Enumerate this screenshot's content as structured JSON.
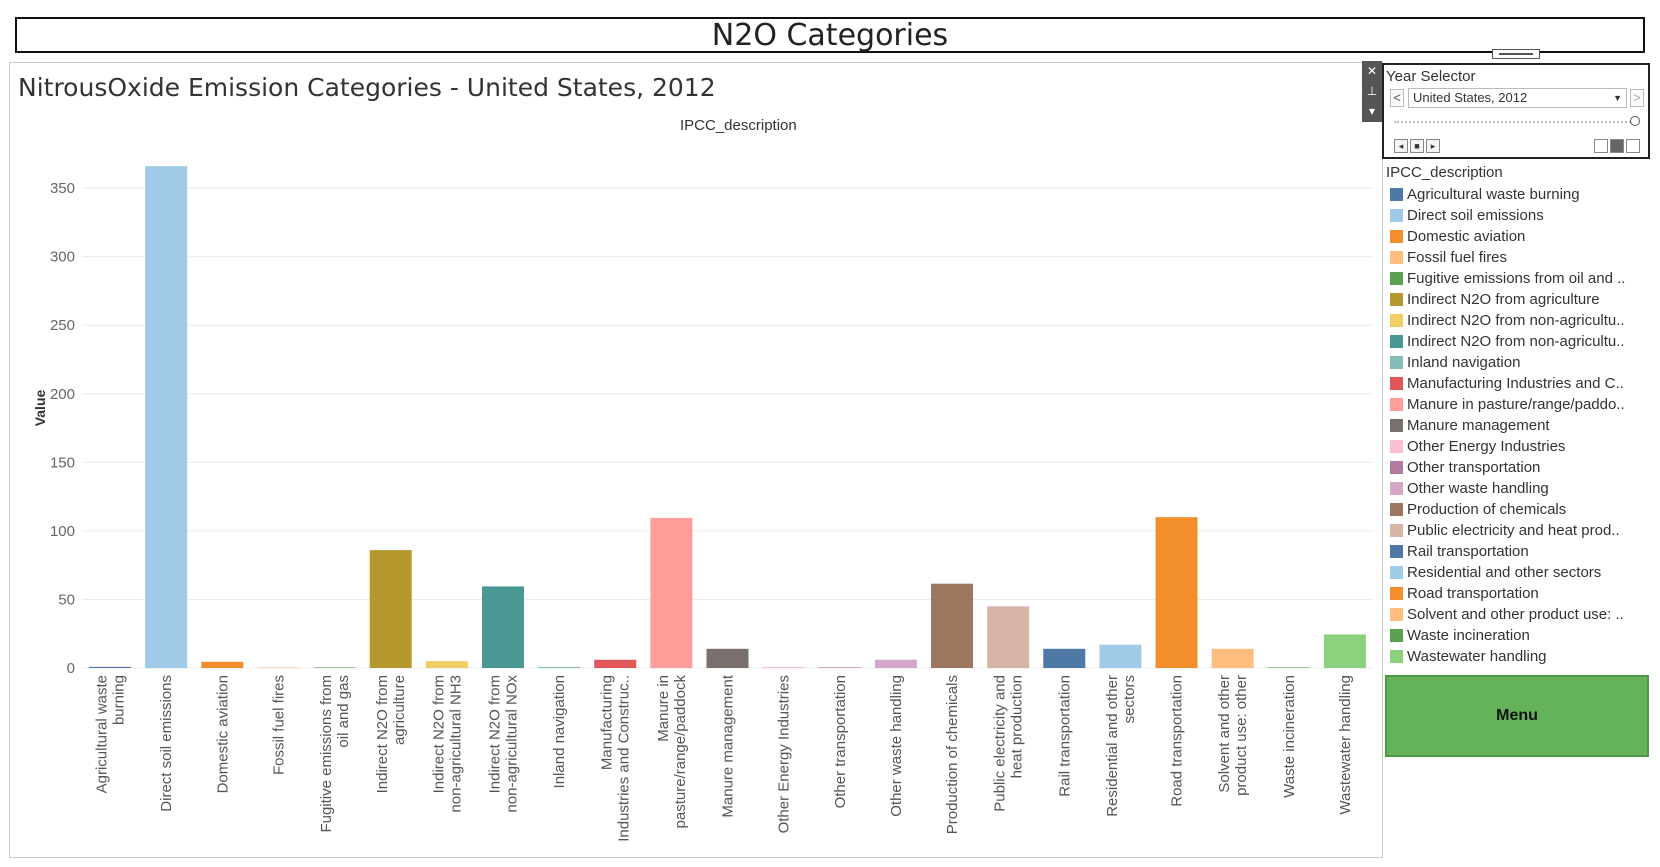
{
  "dashboard": {
    "title": "N2O Categories"
  },
  "sheet": {
    "title": "NitrousOxide Emission Categories - United States, 2012"
  },
  "year_selector": {
    "title": "Year Selector",
    "selected": "United States, 2012",
    "prev": "<",
    "next": ">",
    "dropdown_icon": "▼",
    "slider_position": 1.0
  },
  "float_tools": {
    "close": "✕",
    "pin": "⊥",
    "more": "▾"
  },
  "legend": {
    "title": "IPCC_description",
    "items": [
      {
        "label": "Agricultural waste burning",
        "color": "#4e79a7"
      },
      {
        "label": "Direct soil emissions",
        "color": "#a0cbe8"
      },
      {
        "label": "Domestic aviation",
        "color": "#f28e2b"
      },
      {
        "label": "Fossil fuel fires",
        "color": "#ffbe7d"
      },
      {
        "label": "Fugitive emissions from oil and ..",
        "color": "#59a14f"
      },
      {
        "label": "Indirect N2O from agriculture",
        "color": "#b6992d"
      },
      {
        "label": "Indirect N2O from non-agricultu..",
        "color": "#f1ce63"
      },
      {
        "label": "Indirect N2O from non-agricultu..",
        "color": "#499894"
      },
      {
        "label": "Inland navigation",
        "color": "#86bcb6"
      },
      {
        "label": "Manufacturing Industries and C..",
        "color": "#e15759"
      },
      {
        "label": "Manure in pasture/range/paddo..",
        "color": "#ff9d9a"
      },
      {
        "label": "Manure management",
        "color": "#79706e"
      },
      {
        "label": "Other Energy Industries",
        "color": "#fabfd2"
      },
      {
        "label": "Other transportation",
        "color": "#b07aa1"
      },
      {
        "label": "Other waste handling",
        "color": "#d4a6c8"
      },
      {
        "label": "Production of chemicals",
        "color": "#9d7660"
      },
      {
        "label": "Public electricity and heat prod..",
        "color": "#d7b5a6"
      },
      {
        "label": "Rail transportation",
        "color": "#4e79a7"
      },
      {
        "label": "Residential and other sectors",
        "color": "#a0cbe8"
      },
      {
        "label": "Road transportation",
        "color": "#f28e2b"
      },
      {
        "label": "Solvent and other product use: ..",
        "color": "#ffbe7d"
      },
      {
        "label": "Waste incineration",
        "color": "#59a14f"
      },
      {
        "label": "Wastewater handling",
        "color": "#8cd17d"
      }
    ]
  },
  "menu": {
    "label": "Menu"
  },
  "chart_data": {
    "type": "bar",
    "title": "",
    "column_header": "IPCC_description",
    "ylabel": "Value",
    "ylim": [
      0,
      380
    ],
    "yticks": [
      0,
      50,
      100,
      150,
      200,
      250,
      300,
      350
    ],
    "grid": true,
    "categories": [
      [
        "Agricultural waste",
        "burning"
      ],
      [
        "Direct soil emissions"
      ],
      [
        "Domestic aviation"
      ],
      [
        "Fossil fuel fires"
      ],
      [
        "Fugitive emissions from",
        "oil and gas"
      ],
      [
        "Indirect N2O from",
        "agriculture"
      ],
      [
        "Indirect N2O from",
        "non-agricultural NH3"
      ],
      [
        "Indirect N2O from",
        "non-agricultural NOx"
      ],
      [
        "Inland navigation"
      ],
      [
        "Manufacturing",
        "Industries and Construc.."
      ],
      [
        "Manure in",
        "pasture/range/paddock"
      ],
      [
        "Manure management"
      ],
      [
        "Other Energy Industries"
      ],
      [
        "Other transportation"
      ],
      [
        "Other waste handling"
      ],
      [
        "Production of chemicals"
      ],
      [
        "Public electricity and",
        "heat production"
      ],
      [
        "Rail transportation"
      ],
      [
        "Residential and other",
        "sectors"
      ],
      [
        "Road transportation"
      ],
      [
        "Solvent and other",
        "product use: other"
      ],
      [
        "Waste incineration"
      ],
      [
        "Wastewater handling"
      ]
    ],
    "values": [
      0.8,
      366,
      4.5,
      0.2,
      0.3,
      86,
      5,
      59.5,
      0.8,
      6,
      109.5,
      14,
      0.8,
      0.2,
      6,
      61.5,
      45,
      14,
      17,
      110,
      14,
      0.2,
      24.5
    ],
    "colors": [
      "#4e79a7",
      "#a0cbe8",
      "#f28e2b",
      "#ffbe7d",
      "#59a14f",
      "#b6992d",
      "#f1ce63",
      "#499894",
      "#86bcb6",
      "#e15759",
      "#ff9d9a",
      "#79706e",
      "#fabfd2",
      "#b07aa1",
      "#d4a6c8",
      "#9d7660",
      "#d7b5a6",
      "#4e79a7",
      "#a0cbe8",
      "#f28e2b",
      "#ffbe7d",
      "#59a14f",
      "#8cd17d"
    ]
  }
}
